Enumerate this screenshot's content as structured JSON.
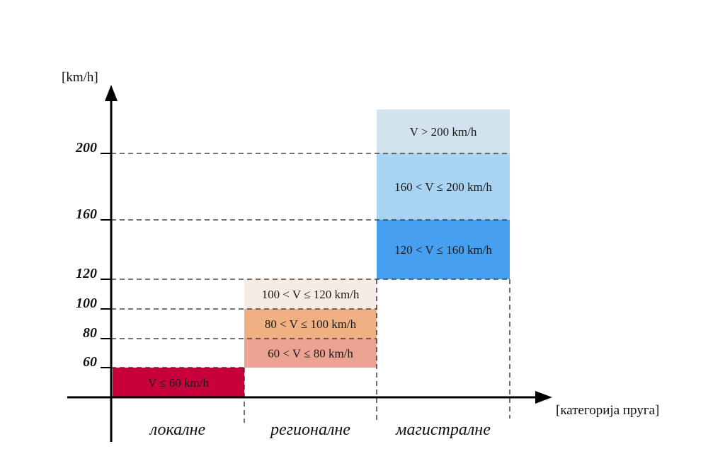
{
  "y_axis": {
    "unit_label": "[km/h]"
  },
  "x_axis": {
    "unit_label": "[категорија пруга]"
  },
  "y_ticks": [
    "60",
    "80",
    "100",
    "120",
    "160",
    "200"
  ],
  "categories": [
    "локалне",
    "регионалне",
    "магистралне"
  ],
  "bands": [
    {
      "category": "локалне",
      "label": "V ≤ 60 km/h",
      "from": 0,
      "to": 60,
      "color": "#c8003c"
    },
    {
      "category": "регионалне",
      "label": "60 < V ≤ 80 km/h",
      "from": 60,
      "to": 80,
      "color": "#eda393"
    },
    {
      "category": "регионалне",
      "label": "80 < V ≤ 100 km/h",
      "from": 80,
      "to": 100,
      "color": "#efb183"
    },
    {
      "category": "регионалне",
      "label": "100 < V ≤ 120 km/h",
      "from": 100,
      "to": 120,
      "color": "#f7ebe6"
    },
    {
      "category": "магистралне",
      "label": "120 < V ≤ 160 km/h",
      "from": 120,
      "to": 160,
      "color": "#479ff0"
    },
    {
      "category": "магистралне",
      "label": "160 < V ≤ 200 km/h",
      "from": 160,
      "to": 200,
      "color": "#a9d3f3"
    },
    {
      "category": "магистралне",
      "label": "V > 200 km/h",
      "from": 200,
      "to": 230,
      "color": "#d2e3ee"
    }
  ]
}
